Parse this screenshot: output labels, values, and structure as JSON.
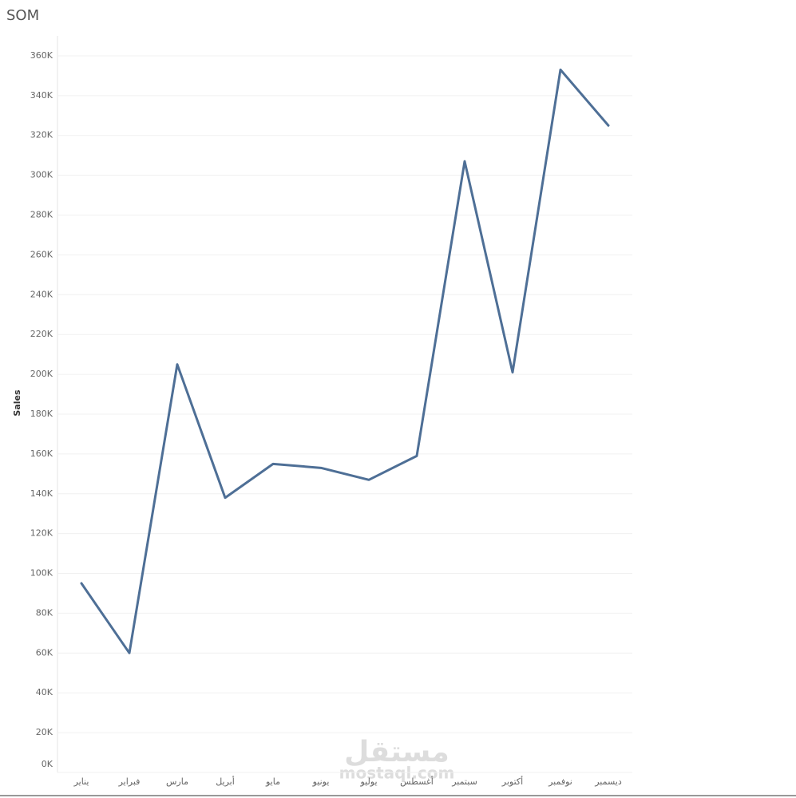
{
  "chart_data": {
    "type": "line",
    "title": "SOM",
    "y_label": "Sales",
    "categories": [
      "يناير",
      "فبراير",
      "مارس",
      "أبريل",
      "مايو",
      "يونيو",
      "يوليو",
      "أغسطس",
      "سبتمبر",
      "أكتوبر",
      "نوفمبر",
      "ديسمبر"
    ],
    "series": [
      {
        "name": "Sales",
        "color": "#4e6f96",
        "values": [
          95000,
          60000,
          205000,
          138000,
          155000,
          153000,
          147000,
          159000,
          307000,
          201000,
          353000,
          325000
        ]
      }
    ],
    "ylim": [
      0,
      370000
    ],
    "yticks": [
      {
        "value": 0,
        "label": "0K"
      },
      {
        "value": 20000,
        "label": "20K"
      },
      {
        "value": 40000,
        "label": "40K"
      },
      {
        "value": 60000,
        "label": "60K"
      },
      {
        "value": 80000,
        "label": "80K"
      },
      {
        "value": 100000,
        "label": "100K"
      },
      {
        "value": 120000,
        "label": "120K"
      },
      {
        "value": 140000,
        "label": "140K"
      },
      {
        "value": 160000,
        "label": "160K"
      },
      {
        "value": 180000,
        "label": "180K"
      },
      {
        "value": 200000,
        "label": "200K"
      },
      {
        "value": 220000,
        "label": "220K"
      },
      {
        "value": 240000,
        "label": "240K"
      },
      {
        "value": 260000,
        "label": "260K"
      },
      {
        "value": 280000,
        "label": "280K"
      },
      {
        "value": 300000,
        "label": "300K"
      },
      {
        "value": 320000,
        "label": "320K"
      },
      {
        "value": 340000,
        "label": "340K"
      },
      {
        "value": 360000,
        "label": "360K"
      }
    ],
    "grid": true,
    "annotations": [
      "مستقل",
      "mostaql.com"
    ]
  }
}
